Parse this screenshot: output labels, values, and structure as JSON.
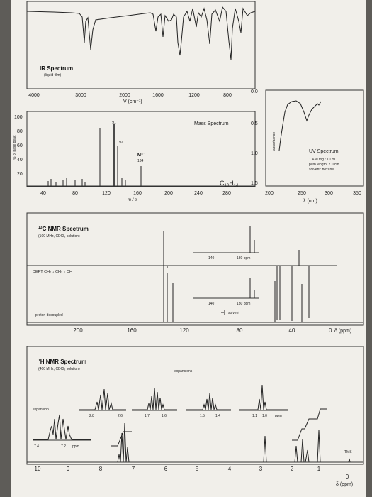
{
  "ir": {
    "title": "IR Spectrum",
    "subtitle": "(liquid film)",
    "ticks": [
      "4000",
      "3000",
      "2000",
      "1600",
      "1200",
      "800"
    ],
    "xlabel": "V  (cm⁻¹)"
  },
  "mass": {
    "title": "Mass Spectrum",
    "ylabel": "% of base peak",
    "yticks": [
      "100",
      "80",
      "60",
      "40",
      "20"
    ],
    "xticks": [
      "40",
      "80",
      "120",
      "160",
      "200",
      "240",
      "280"
    ],
    "xlabel": "m / e",
    "peak_labels": [
      "91",
      "92"
    ],
    "mplus_label": "M⁺˙",
    "mplus_value": "134",
    "formula": "C10H14",
    "formula_parts": {
      "c": "C",
      "cn": "10",
      "h": "H",
      "hn": "14"
    }
  },
  "uv": {
    "title": "UV Spectrum",
    "line1": "1.430 mg / 10 mL",
    "line2": "path length: 2.0 cm",
    "line3": "solvent: hexane",
    "ylabel": "absorbance",
    "yticks": [
      "0.0",
      "0.5",
      "1.0",
      "1.5"
    ],
    "xticks": [
      "200",
      "250",
      "300",
      "350"
    ],
    "xlabel": "λ (nm)"
  },
  "c13": {
    "title_sup": "13",
    "title": "C NMR Spectrum",
    "subtitle": "(100 MHz, CDCl₃ solution)",
    "dept_label": "DEPT  CH₂ ↓  CH₃ ↑  CH ↑",
    "proton_label": "proton decoupled",
    "exp1_ticks": [
      "140",
      "130 ppm"
    ],
    "exp2_ticks": [
      "140",
      "130 ppm"
    ],
    "solvent": "solvent",
    "axis_ticks": [
      "200",
      "160",
      "120",
      "80",
      "40",
      "0"
    ],
    "axis_unit": "δ (ppm)"
  },
  "h1": {
    "title_sup": "1",
    "title": "H NMR Spectrum",
    "subtitle": "(400 MHz, CDCl₃ solution)",
    "expansions": "expansions",
    "expansion": "expansion",
    "exp_ticks": [
      "2.8",
      "2.6",
      "1.7",
      "1.6",
      "1.5",
      "1.4",
      "1.1",
      "1.0",
      "ppm"
    ],
    "inset_ticks": [
      "7.4",
      "7.2",
      "ppm"
    ],
    "tms": "TMS",
    "axis_ticks": [
      "10",
      "9",
      "8",
      "7",
      "6",
      "5",
      "4",
      "3",
      "2",
      "1",
      "0"
    ],
    "axis_unit": "δ (ppm)"
  }
}
